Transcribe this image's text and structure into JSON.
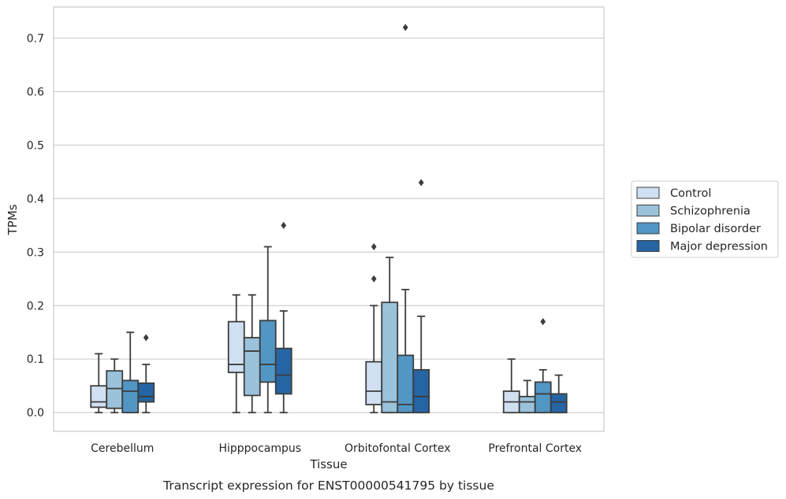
{
  "caption": "Transcript expression for ENST00000541795 by tissue",
  "chart_data": {
    "type": "box",
    "xlabel": "Tissue",
    "ylabel": "TPMs",
    "ylim": [
      -0.035,
      0.758
    ],
    "yticks": [
      0.0,
      0.1,
      0.2,
      0.3,
      0.4,
      0.5,
      0.6,
      0.7
    ],
    "ytick_labels": [
      "0.0",
      "0.1",
      "0.2",
      "0.3",
      "0.4",
      "0.5",
      "0.6",
      "0.7"
    ],
    "grid": "horizontal",
    "legend_position": "right",
    "categories": [
      "Cerebellum",
      "Hipppocampus",
      "Orbitofontal Cortex",
      "Prefrontal Cortex"
    ],
    "series": [
      {
        "name": "Control",
        "color": "#d0e0f2",
        "boxes": [
          {
            "whislo": 0.0,
            "q1": 0.01,
            "med": 0.02,
            "q3": 0.05,
            "whishi": 0.11,
            "fliers": []
          },
          {
            "whislo": 0.0,
            "q1": 0.075,
            "med": 0.09,
            "q3": 0.17,
            "whishi": 0.22,
            "fliers": []
          },
          {
            "whislo": 0.0,
            "q1": 0.015,
            "med": 0.04,
            "q3": 0.095,
            "whishi": 0.2,
            "fliers": [
              0.25,
              0.31
            ]
          },
          {
            "whislo": 0.0,
            "q1": 0.0,
            "med": 0.02,
            "q3": 0.04,
            "whishi": 0.1,
            "fliers": []
          }
        ]
      },
      {
        "name": "Schizophrenia",
        "color": "#9ac2db",
        "boxes": [
          {
            "whislo": 0.0,
            "q1": 0.008,
            "med": 0.045,
            "q3": 0.078,
            "whishi": 0.1,
            "fliers": []
          },
          {
            "whislo": 0.0,
            "q1": 0.032,
            "med": 0.115,
            "q3": 0.14,
            "whishi": 0.22,
            "fliers": []
          },
          {
            "whislo": 0.0,
            "q1": 0.0,
            "med": 0.02,
            "q3": 0.206,
            "whishi": 0.29,
            "fliers": []
          },
          {
            "whislo": 0.0,
            "q1": 0.0,
            "med": 0.02,
            "q3": 0.03,
            "whishi": 0.06,
            "fliers": []
          }
        ]
      },
      {
        "name": "Bipolar disorder",
        "color": "#5196c5",
        "boxes": [
          {
            "whislo": 0.0,
            "q1": 0.0,
            "med": 0.04,
            "q3": 0.06,
            "whishi": 0.15,
            "fliers": []
          },
          {
            "whislo": 0.0,
            "q1": 0.057,
            "med": 0.09,
            "q3": 0.172,
            "whishi": 0.31,
            "fliers": []
          },
          {
            "whislo": 0.0,
            "q1": 0.0,
            "med": 0.015,
            "q3": 0.107,
            "whishi": 0.23,
            "fliers": [
              0.72
            ]
          },
          {
            "whislo": 0.0,
            "q1": 0.0,
            "med": 0.035,
            "q3": 0.057,
            "whishi": 0.08,
            "fliers": [
              0.17
            ]
          }
        ]
      },
      {
        "name": "Major depression",
        "color": "#2565a4",
        "boxes": [
          {
            "whislo": 0.0,
            "q1": 0.02,
            "med": 0.03,
            "q3": 0.055,
            "whishi": 0.09,
            "fliers": [
              0.14
            ]
          },
          {
            "whislo": 0.0,
            "q1": 0.035,
            "med": 0.07,
            "q3": 0.12,
            "whishi": 0.19,
            "fliers": [
              0.35
            ]
          },
          {
            "whislo": 0.0,
            "q1": 0.0,
            "med": 0.03,
            "q3": 0.08,
            "whishi": 0.18,
            "fliers": [
              0.43
            ]
          },
          {
            "whislo": 0.0,
            "q1": 0.0,
            "med": 0.02,
            "q3": 0.035,
            "whishi": 0.07,
            "fliers": []
          }
        ]
      }
    ]
  }
}
